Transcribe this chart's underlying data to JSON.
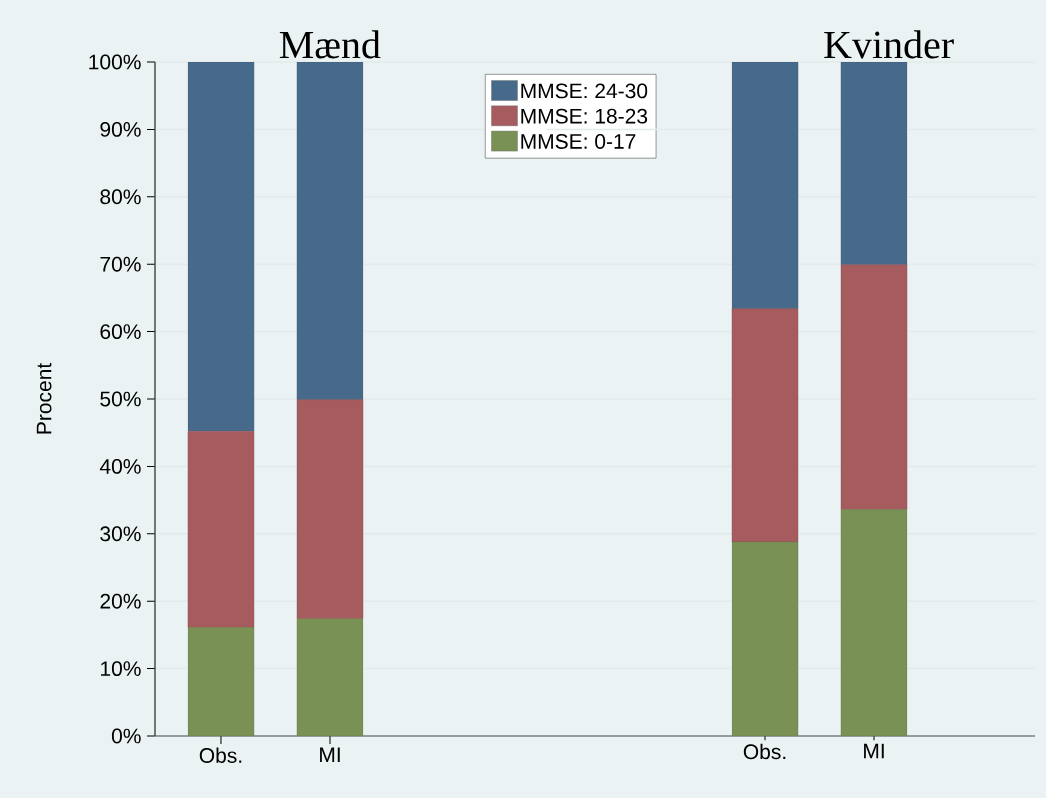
{
  "chart_data": [
    {
      "type": "bar",
      "title": "Mænd",
      "stacked": true,
      "categories": [
        "Obs.",
        "MI"
      ],
      "ylabel": "Procent",
      "ylim": [
        0,
        100
      ],
      "yticks": [
        {
          "value": 0,
          "label": "0%"
        },
        {
          "value": 10,
          "label": "10%"
        },
        {
          "value": 20,
          "label": "20%"
        },
        {
          "value": 30,
          "label": "30%"
        },
        {
          "value": 40,
          "label": "40%"
        },
        {
          "value": 50,
          "label": "50%"
        },
        {
          "value": 60,
          "label": "60%"
        },
        {
          "value": 70,
          "label": "70%"
        },
        {
          "value": 80,
          "label": "80%"
        },
        {
          "value": 90,
          "label": "90%"
        },
        {
          "value": 100,
          "label": "100%"
        }
      ],
      "grid": "y",
      "legend": "top right",
      "series": [
        {
          "name": "MMSE: 0-17",
          "color": "#7a9155",
          "values": [
            16.1,
            17.4
          ]
        },
        {
          "name": "MMSE: 18-23",
          "color": "#a65c5f",
          "values": [
            29.1,
            32.5
          ]
        },
        {
          "name": "MMSE: 24-30",
          "color": "#476a8b",
          "values": [
            54.8,
            50.1
          ]
        }
      ]
    },
    {
      "type": "bar",
      "title": "Kvinder",
      "stacked": true,
      "categories": [
        "Obs.",
        "MI"
      ],
      "ylim": [
        0,
        100
      ],
      "yticks": [
        {
          "value": 0,
          "label": null
        },
        {
          "value": 10,
          "label": null
        },
        {
          "value": 20,
          "label": null
        },
        {
          "value": 30,
          "label": null
        },
        {
          "value": 40,
          "label": null
        },
        {
          "value": 50,
          "label": null
        },
        {
          "value": 60,
          "label": null
        },
        {
          "value": 70,
          "label": null
        },
        {
          "value": 80,
          "label": null
        },
        {
          "value": 90,
          "label": null
        },
        {
          "value": 100,
          "label": null
        }
      ],
      "grid": "y",
      "tick_labels": "x",
      "series": [
        {
          "color": "#7a9155",
          "values": [
            28.8,
            33.6
          ]
        },
        {
          "color": "#a65c5f",
          "values": [
            34.6,
            36.3
          ]
        },
        {
          "color": "#476a8b",
          "values": [
            36.6,
            30.1
          ]
        }
      ]
    }
  ]
}
